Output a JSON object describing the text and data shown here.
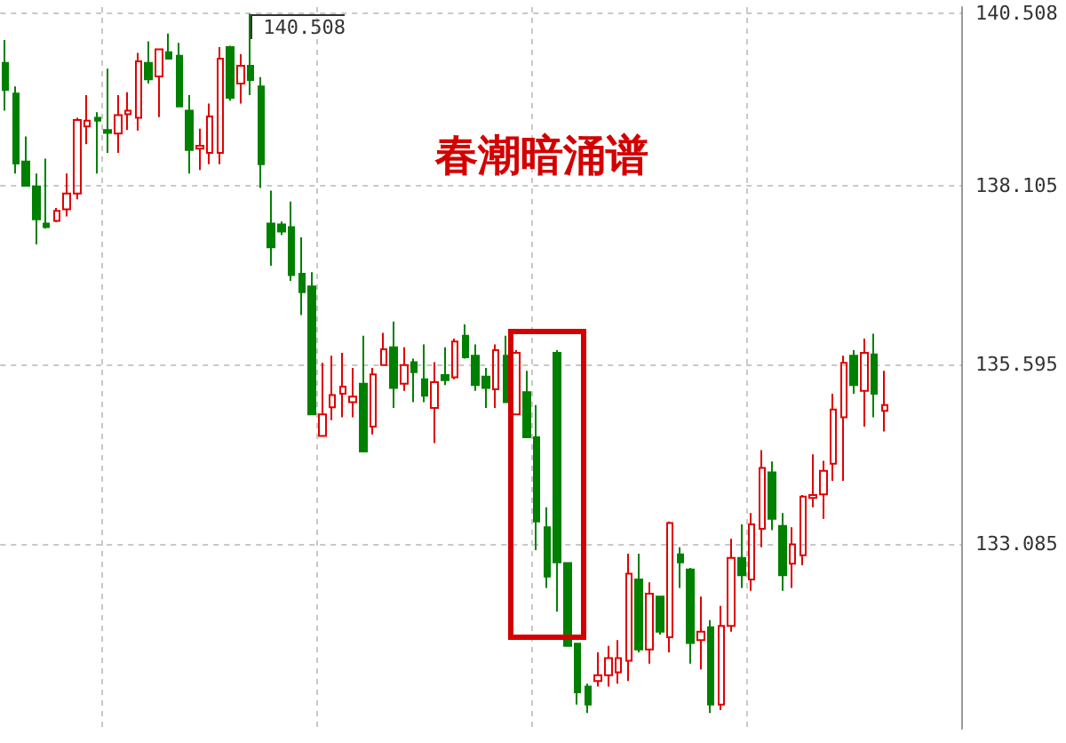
{
  "chart_data": {
    "type": "candlestick",
    "title": "春潮暗涌谱",
    "annotations": [
      "140.508"
    ],
    "categories": [
      null,
      null,
      null,
      null,
      null,
      null,
      null,
      null,
      null,
      null,
      null,
      null,
      null,
      null,
      null,
      null,
      null,
      null,
      null,
      null,
      null,
      null,
      null,
      null,
      null,
      null,
      null,
      null,
      null,
      null,
      null,
      null,
      null,
      null,
      null,
      null,
      null,
      null,
      null,
      null,
      null,
      null,
      null,
      null,
      null,
      null,
      null,
      null,
      null,
      null,
      null,
      null,
      null,
      null,
      null,
      null,
      null,
      null,
      null,
      null,
      null,
      null,
      null,
      null,
      null,
      null,
      null,
      null,
      null,
      null,
      null,
      null,
      null,
      null,
      null,
      null,
      null,
      null,
      null,
      null,
      null,
      null,
      null,
      null,
      null,
      null,
      null,
      null,
      null,
      null,
      null,
      null,
      null,
      null
    ],
    "ohlc": [
      [
        139.82,
        140.14,
        139.15,
        139.44
      ],
      [
        139.39,
        139.49,
        138.27,
        138.41
      ],
      [
        138.44,
        138.79,
        138.09,
        138.1
      ],
      [
        138.09,
        138.27,
        137.28,
        137.63
      ],
      [
        137.57,
        138.48,
        137.5,
        137.52
      ],
      [
        137.61,
        137.79,
        137.59,
        137.75
      ],
      [
        137.77,
        138.27,
        137.67,
        137.99
      ],
      [
        137.99,
        139.05,
        137.91,
        139.02
      ],
      [
        138.93,
        139.37,
        138.68,
        139.01
      ],
      [
        139.05,
        139.13,
        138.27,
        139.01
      ],
      [
        138.88,
        139.74,
        138.56,
        138.84
      ],
      [
        138.83,
        139.37,
        138.56,
        139.09
      ],
      [
        139.1,
        139.41,
        138.88,
        139.15
      ],
      [
        139.05,
        139.96,
        138.87,
        139.84
      ],
      [
        139.82,
        140.12,
        139.53,
        139.59
      ],
      [
        139.63,
        140.02,
        139.06,
        140.01
      ],
      [
        139.97,
        140.23,
        139.87,
        139.88
      ],
      [
        139.92,
        140.1,
        139.2,
        139.21
      ],
      [
        139.15,
        139.37,
        138.27,
        138.6
      ],
      [
        138.62,
        138.9,
        138.32,
        138.66
      ],
      [
        138.56,
        139.25,
        138.4,
        139.07
      ],
      [
        138.56,
        140.04,
        138.4,
        139.88
      ],
      [
        140.04,
        140.06,
        139.29,
        139.33
      ],
      [
        139.53,
        139.94,
        139.25,
        139.78
      ],
      [
        139.78,
        140.508,
        139.37,
        139.58
      ],
      [
        139.49,
        139.62,
        138.07,
        138.4
      ],
      [
        137.57,
        138.03,
        136.98,
        137.24
      ],
      [
        137.56,
        137.6,
        137.41,
        137.46
      ],
      [
        137.52,
        137.88,
        136.77,
        136.85
      ],
      [
        136.87,
        137.38,
        136.29,
        136.61
      ],
      [
        136.69,
        136.89,
        134.89,
        134.9
      ],
      [
        134.6,
        135.62,
        134.59,
        134.9
      ],
      [
        135.0,
        135.72,
        134.82,
        135.17
      ],
      [
        135.19,
        135.76,
        134.86,
        135.29
      ],
      [
        135.07,
        135.55,
        134.86,
        135.15
      ],
      [
        135.33,
        136.0,
        134.37,
        134.38
      ],
      [
        134.73,
        135.55,
        134.62,
        135.46
      ],
      [
        135.59,
        136.04,
        135.58,
        135.81
      ],
      [
        135.84,
        136.2,
        134.99,
        135.27
      ],
      [
        135.33,
        135.84,
        135.23,
        135.59
      ],
      [
        135.63,
        135.68,
        135.07,
        135.49
      ],
      [
        135.39,
        135.88,
        135.07,
        135.16
      ],
      [
        134.99,
        135.63,
        134.5,
        135.35
      ],
      [
        135.45,
        135.84,
        135.31,
        135.38
      ],
      [
        135.42,
        135.96,
        135.39,
        135.92
      ],
      [
        136.0,
        136.16,
        135.68,
        135.7
      ],
      [
        135.72,
        135.88,
        135.23,
        135.31
      ],
      [
        135.43,
        135.55,
        134.99,
        135.27
      ],
      [
        135.25,
        135.88,
        134.99,
        135.8
      ],
      [
        135.72,
        136.0,
        135.06,
        135.07
      ],
      [
        134.9,
        135.8,
        134.89,
        135.76
      ],
      [
        135.21,
        135.51,
        134.57,
        134.58
      ],
      [
        134.58,
        135.03,
        133.0,
        133.4
      ],
      [
        133.32,
        133.6,
        132.47,
        132.63
      ],
      [
        135.76,
        135.8,
        132.14,
        132.83
      ],
      [
        132.82,
        132.83,
        131.65,
        131.66
      ],
      [
        131.69,
        131.7,
        130.84,
        131.01
      ],
      [
        131.09,
        131.13,
        130.72,
        130.84
      ],
      [
        131.17,
        131.57,
        131.09,
        131.25
      ],
      [
        131.25,
        131.66,
        131.09,
        131.49
      ],
      [
        131.29,
        131.74,
        131.13,
        131.49
      ],
      [
        131.45,
        132.95,
        131.17,
        132.67
      ],
      [
        132.59,
        132.95,
        131.57,
        131.61
      ],
      [
        131.61,
        132.55,
        131.41,
        132.39
      ],
      [
        132.35,
        132.35,
        131.82,
        131.86
      ],
      [
        131.78,
        133.4,
        131.57,
        133.38
      ],
      [
        132.94,
        133.04,
        132.47,
        132.83
      ],
      [
        132.73,
        132.75,
        131.41,
        131.7
      ],
      [
        131.74,
        132.35,
        131.33,
        131.86
      ],
      [
        131.92,
        132.02,
        130.72,
        130.84
      ],
      [
        130.84,
        132.22,
        130.76,
        131.94
      ],
      [
        131.94,
        133.16,
        131.86,
        132.89
      ],
      [
        132.89,
        133.36,
        132.47,
        132.65
      ],
      [
        132.59,
        133.52,
        132.43,
        133.36
      ],
      [
        133.3,
        134.4,
        133.04,
        134.15
      ],
      [
        134.09,
        134.24,
        133.28,
        133.44
      ],
      [
        133.34,
        133.52,
        132.43,
        132.65
      ],
      [
        132.81,
        133.32,
        132.47,
        133.08
      ],
      [
        132.93,
        133.77,
        132.79,
        133.75
      ],
      [
        133.73,
        134.34,
        133.6,
        133.77
      ],
      [
        133.78,
        134.25,
        133.44,
        134.11
      ],
      [
        134.21,
        135.19,
        133.97,
        134.97
      ],
      [
        134.86,
        135.72,
        133.97,
        135.62
      ],
      [
        135.72,
        135.8,
        135.19,
        135.31
      ],
      [
        135.23,
        135.96,
        134.73,
        135.76
      ],
      [
        135.74,
        136.03,
        134.86,
        135.19
      ],
      [
        134.95,
        135.51,
        134.66,
        135.03
      ],
      null,
      null,
      null,
      null,
      null,
      null,
      null
    ],
    "ylim": [
      130.5,
      140.6
    ],
    "yticks": [
      133.085,
      135.595,
      138.105,
      140.508
    ],
    "grid": true
  }
}
